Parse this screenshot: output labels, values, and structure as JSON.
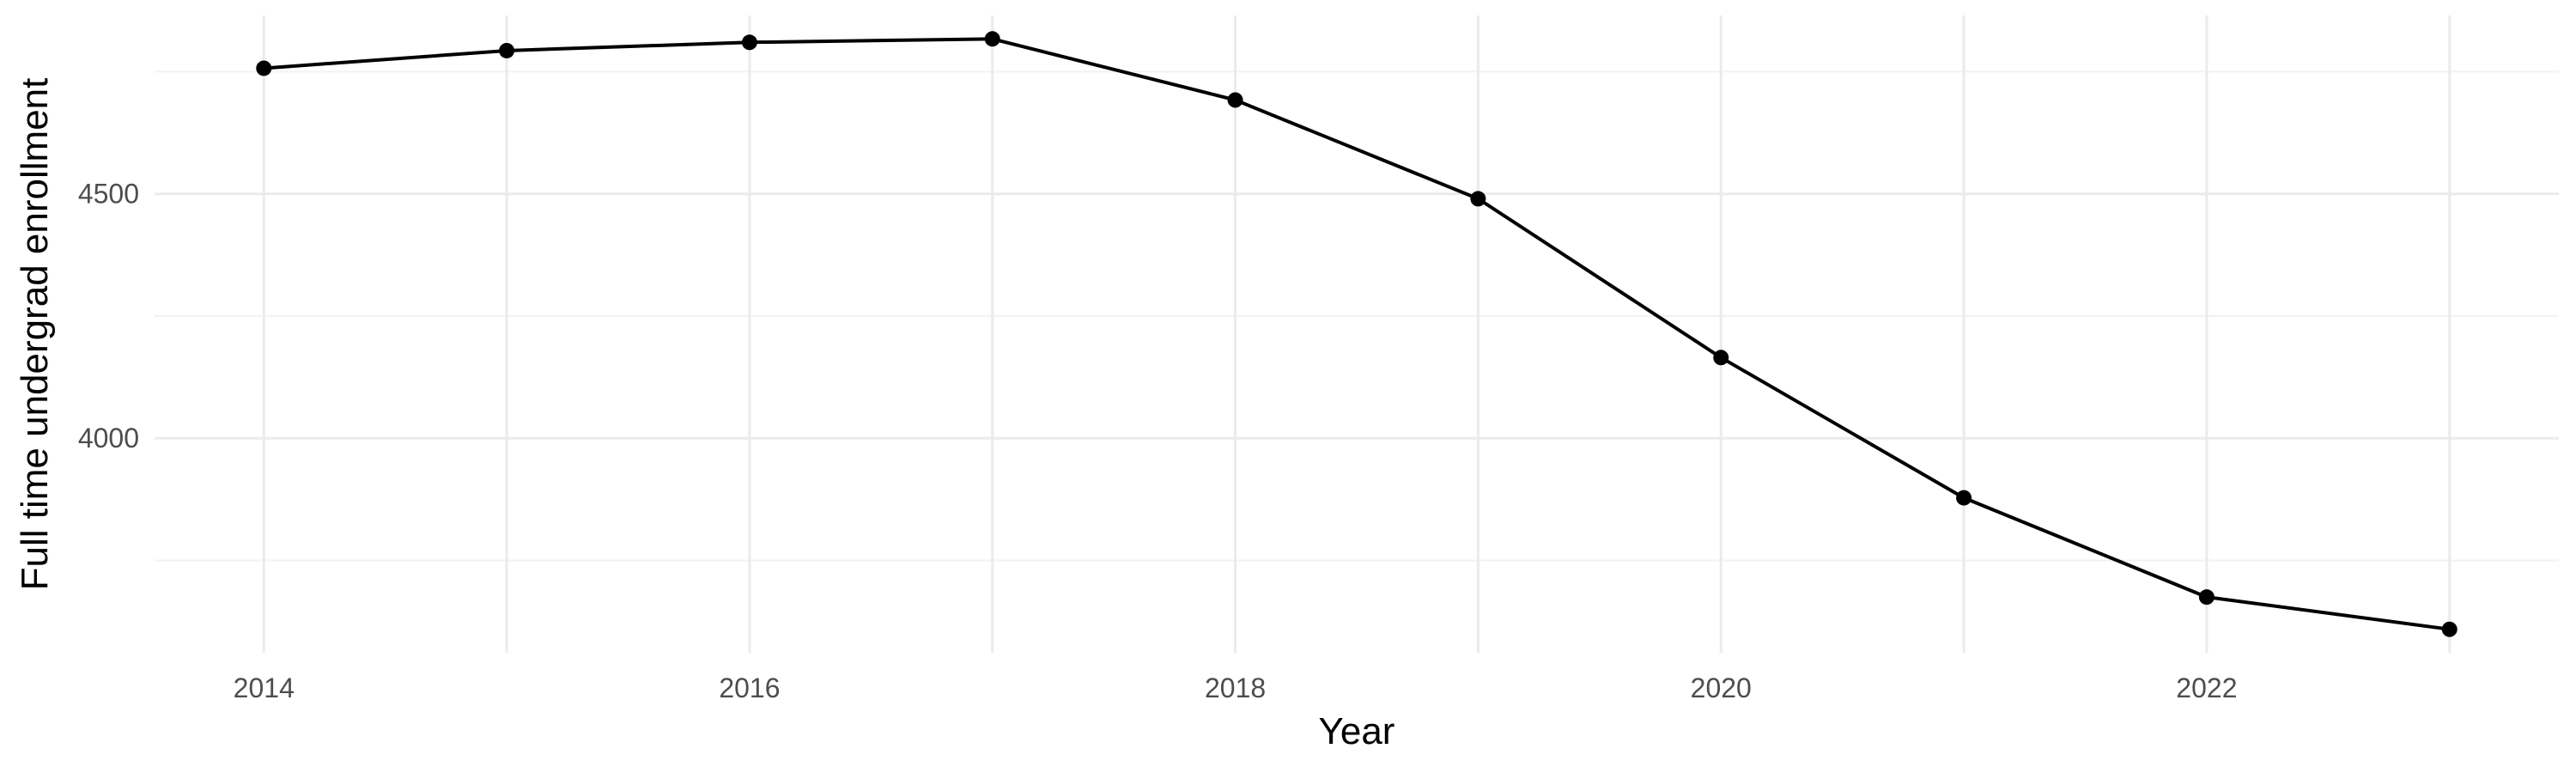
{
  "chart_data": {
    "type": "line",
    "title": "",
    "xlabel": "Year",
    "ylabel": "Full time undergrad enrollment",
    "x": [
      2014,
      2015,
      2016,
      2017,
      2018,
      2019,
      2020,
      2021,
      2022,
      2023
    ],
    "series": [
      {
        "values": [
          4757,
          4793,
          4810,
          4817,
          4692,
          4490,
          4165,
          3878,
          3675,
          3609
        ]
      }
    ],
    "x_ticks": [
      2014,
      2016,
      2018,
      2020,
      2022
    ],
    "x_tick_labels": [
      "2014",
      "2016",
      "2018",
      "2020",
      "2022"
    ],
    "y_ticks": [
      4000,
      4500
    ],
    "y_tick_labels": [
      "4000",
      "4500"
    ],
    "xlim": [
      2013.55,
      2023.45
    ],
    "ylim": [
      3561,
      4865
    ],
    "grid": true,
    "legend": "none",
    "colors": {
      "line": "#000000",
      "point": "#000000",
      "grid_major": "#ebebeb",
      "grid_minor": "#f2f2f2",
      "tick_text": "#4d4d4d",
      "axis_title_text": "#000000",
      "background": "#ffffff"
    }
  }
}
